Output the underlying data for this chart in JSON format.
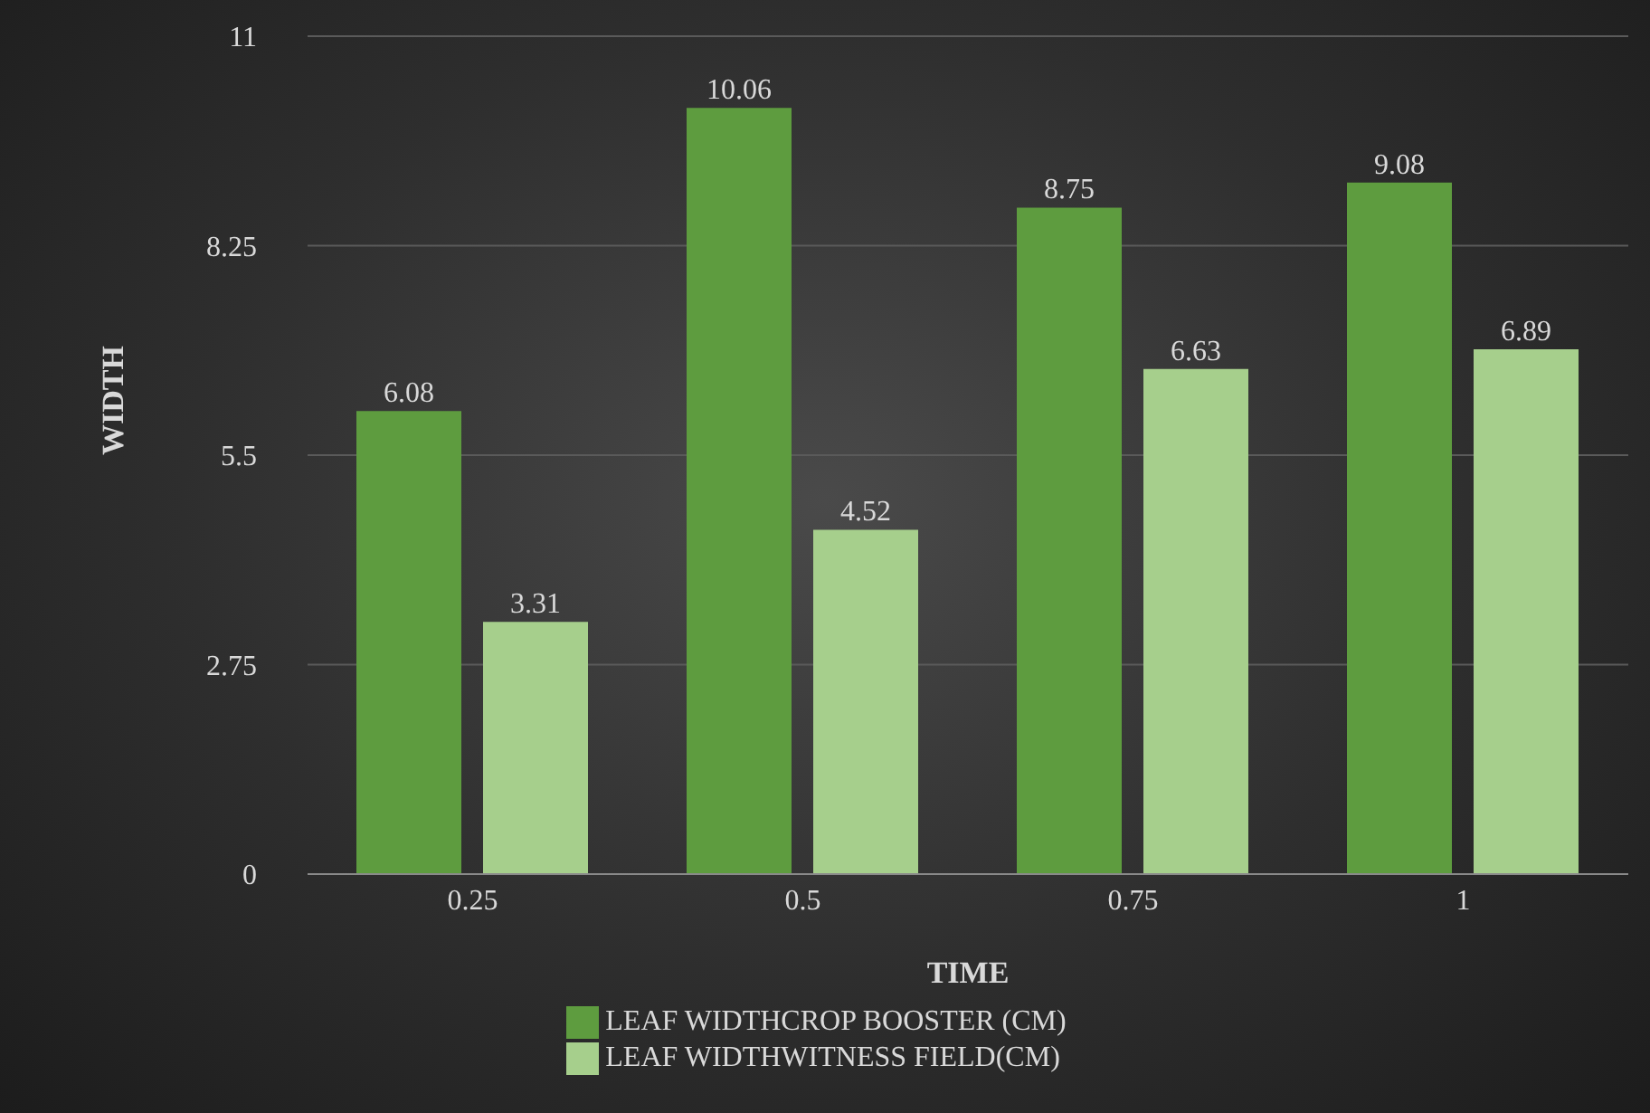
{
  "chart_data": {
    "type": "bar",
    "xlabel": "TIME",
    "ylabel": "WIDTH",
    "categories": [
      "0.25",
      "0.5",
      "0.75",
      "1"
    ],
    "series": [
      {
        "name": "LEAF WIDTHCROP BOOSTER (CM)",
        "color": "#5e9c3f",
        "values": [
          6.08,
          10.06,
          8.75,
          9.08
        ]
      },
      {
        "name": "LEAF WIDTHWITNESS FIELD(CM)",
        "color": "#a6cf8c",
        "values": [
          3.31,
          4.52,
          6.63,
          6.89
        ]
      }
    ],
    "ylim": [
      0,
      11
    ],
    "yticks": [
      0,
      2.75,
      5.5,
      8.25,
      11
    ],
    "grid": "y",
    "legend": "bottom",
    "data_labels": true
  }
}
